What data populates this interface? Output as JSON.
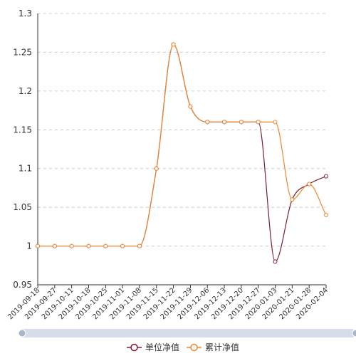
{
  "chart_data": {
    "type": "line",
    "title": "",
    "xlabel": "",
    "ylabel": "",
    "ylim": [
      0.95,
      1.3
    ],
    "yticks": [
      0.95,
      1,
      1.05,
      1.1,
      1.15,
      1.2,
      1.25,
      1.3
    ],
    "ytick_labels": [
      "0.95",
      "1",
      "1.05",
      "1.1",
      "1.15",
      "1.2",
      "1.25",
      "1.3"
    ],
    "grid": true,
    "legend_position": "bottom-center",
    "categories": [
      "2019-09-18",
      "2019-09-27",
      "2019-10-11",
      "2019-10-18",
      "2019-10-25",
      "2019-11-01",
      "2019-11-08",
      "2019-11-15",
      "2019-11-22",
      "2019-11-29",
      "2019-12-06",
      "2019-12-13",
      "2019-12-20",
      "2019-12-27",
      "2020-01-03",
      "2020-01-21",
      "2020-01-28",
      "2020-02-04"
    ],
    "series": [
      {
        "name": "单位净值",
        "color": "#7a1f2b",
        "values": [
          1,
          1,
          1,
          1,
          1,
          1,
          1,
          1.1,
          1.26,
          1.18,
          1.16,
          1.16,
          1.16,
          1.16,
          0.98,
          1.06,
          1.08,
          1.09
        ]
      },
      {
        "name": "累计净值",
        "color": "#f0862d",
        "values": [
          1,
          1,
          1,
          1,
          1,
          1,
          1,
          1.1,
          1.26,
          1.18,
          1.16,
          1.16,
          1.16,
          1.16,
          1.16,
          1.06,
          1.08,
          1.04
        ]
      }
    ]
  },
  "colors": {
    "axis": "#333333",
    "grid": "#cccccc",
    "slider_track": "#d6dce8",
    "slider_handle": "#aab4c4"
  }
}
